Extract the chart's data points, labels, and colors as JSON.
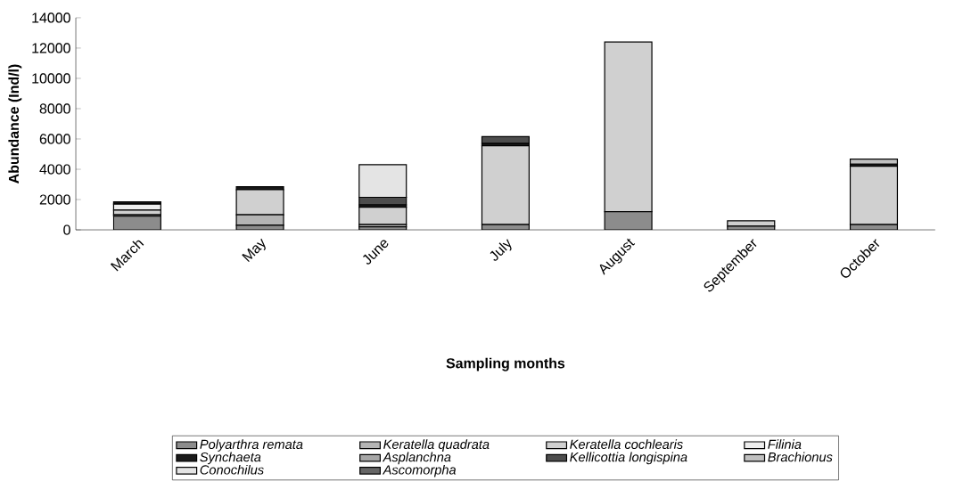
{
  "chart_data": {
    "type": "bar",
    "stacked": true,
    "xlabel": "Sampling months",
    "ylabel": "Abundance (Ind/l)",
    "categories": [
      "March",
      "May",
      "June",
      "July",
      "August",
      "September",
      "October"
    ],
    "ylim": [
      0,
      14000
    ],
    "yticks": [
      0,
      2000,
      4000,
      6000,
      8000,
      10000,
      12000,
      14000
    ],
    "grid": false,
    "legend": "bottom",
    "series": [
      {
        "name": "Polyarthra remata",
        "color": "#8c8c8c",
        "values": [
          900,
          300,
          200,
          350,
          1200,
          250,
          350
        ]
      },
      {
        "name": "Keratella quadrata",
        "color": "#b4b4b4",
        "values": [
          100,
          700,
          150,
          0,
          0,
          0,
          0
        ]
      },
      {
        "name": "Keratella cochlearis",
        "color": "#d0d0d0",
        "values": [
          300,
          1650,
          1150,
          5200,
          11200,
          350,
          3850
        ]
      },
      {
        "name": "Filinia",
        "color": "#eeeeee",
        "values": [
          400,
          0,
          0,
          0,
          0,
          0,
          0
        ]
      },
      {
        "name": "Synchaeta",
        "color": "#1a1a1a",
        "values": [
          150,
          200,
          150,
          150,
          0,
          0,
          140
        ]
      },
      {
        "name": "Asplanchna",
        "color": "#a6a6a6",
        "values": [
          0,
          0,
          0,
          0,
          0,
          0,
          0
        ]
      },
      {
        "name": "Kellicottia longispina",
        "color": "#4d4d4d",
        "values": [
          0,
          0,
          500,
          450,
          0,
          0,
          0
        ]
      },
      {
        "name": "Brachionus",
        "color": "#c0c0c0",
        "values": [
          0,
          0,
          0,
          0,
          0,
          0,
          330
        ]
      },
      {
        "name": "Conochilus",
        "color": "#e4e4e4",
        "values": [
          0,
          0,
          2150,
          0,
          0,
          0,
          0
        ]
      },
      {
        "name": "Ascomorpha",
        "color": "#666666",
        "values": [
          0,
          0,
          0,
          0,
          0,
          0,
          0
        ]
      }
    ]
  }
}
